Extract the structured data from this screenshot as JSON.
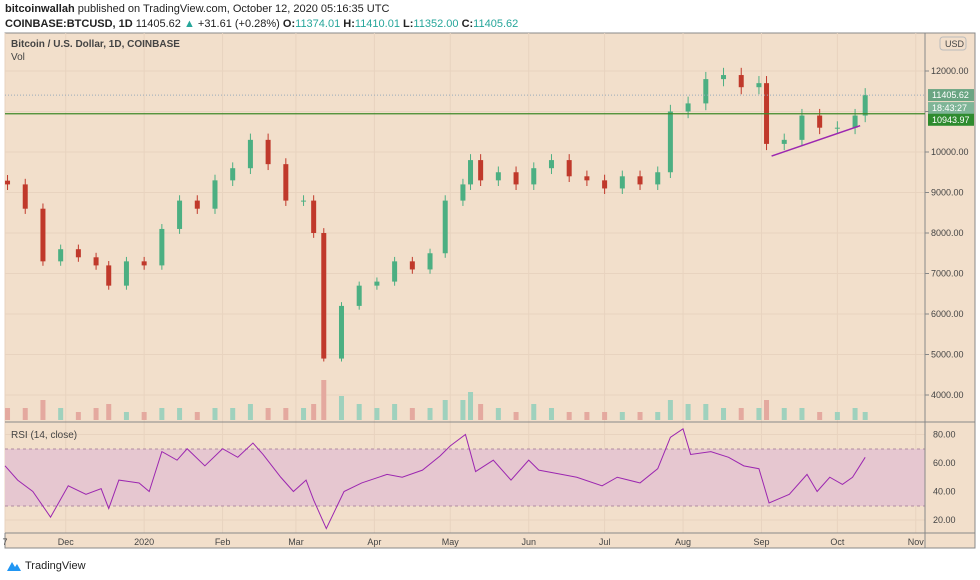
{
  "header": {
    "publisher": "bitcoinwallah",
    "published_text": "published on TradingView.com, October 12, 2020 05:16:35 UTC",
    "symbol": "COINBASE:BTCUSD, 1D",
    "last": "11405.62",
    "change": "+31.61 (+0.28%)",
    "o_label": "O:",
    "o": "11374.01",
    "h_label": "H:",
    "h": "11410.01",
    "l_label": "L:",
    "l": "11352.00",
    "c_label": "C:",
    "c": "11405.62"
  },
  "footer": {
    "brand": "TradingView"
  },
  "colors": {
    "background": "#f2dfcb",
    "up": "#4caf82",
    "down": "#c0392b",
    "rsi_line": "#9c27b0",
    "rsi_band": "#e6c7d0",
    "level_line": "#3f8a2a",
    "trendline": "#9c27b0",
    "price_tag": "#6aa583",
    "level_tag": "#2e8b2e"
  },
  "chart_data": {
    "type": "candlestick",
    "title": "Bitcoin / U.S. Dollar, 1D, COINBASE",
    "volume_label": "Vol",
    "currency_label": "USD",
    "y_ticks": [
      "4000.00",
      "5000.00",
      "6000.00",
      "7000.00",
      "8000.00",
      "9000.00",
      "10000.00",
      "11000.00",
      "12000.00"
    ],
    "x_ticks": [
      [
        "2019-11-07",
        "7"
      ],
      [
        "2019-12-01",
        "Dec"
      ],
      [
        "2020-01-01",
        "2020"
      ],
      [
        "2020-02-01",
        "Feb"
      ],
      [
        "2020-03-01",
        "Mar"
      ],
      [
        "2020-04-01",
        "Apr"
      ],
      [
        "2020-05-01",
        "May"
      ],
      [
        "2020-06-01",
        "Jun"
      ],
      [
        "2020-07-01",
        "Jul"
      ],
      [
        "2020-08-01",
        "Aug"
      ],
      [
        "2020-09-01",
        "Sep"
      ],
      [
        "2020-10-01",
        "Oct"
      ],
      [
        "2020-11-01",
        "Nov"
      ]
    ],
    "price_tag": "11405.62",
    "countdown_tag": "18:43:27",
    "level_tag": "10943.97",
    "level_value": 10943.97,
    "trendline": [
      [
        "2020-09-05",
        9900
      ],
      [
        "2020-10-10",
        10650
      ]
    ],
    "closes": [
      [
        "2019-11-08",
        9200
      ],
      [
        "2019-11-15",
        8600
      ],
      [
        "2019-11-22",
        7300
      ],
      [
        "2019-11-29",
        7600
      ],
      [
        "2019-12-06",
        7400
      ],
      [
        "2019-12-13",
        7200
      ],
      [
        "2019-12-18",
        6700
      ],
      [
        "2019-12-25",
        7300
      ],
      [
        "2020-01-01",
        7200
      ],
      [
        "2020-01-08",
        8100
      ],
      [
        "2020-01-15",
        8800
      ],
      [
        "2020-01-22",
        8600
      ],
      [
        "2020-01-29",
        9300
      ],
      [
        "2020-02-05",
        9600
      ],
      [
        "2020-02-12",
        10300
      ],
      [
        "2020-02-19",
        9700
      ],
      [
        "2020-02-26",
        8800
      ],
      [
        "2020-03-04",
        8800
      ],
      [
        "2020-03-08",
        8000
      ],
      [
        "2020-03-12",
        4900
      ],
      [
        "2020-03-19",
        6200
      ],
      [
        "2020-03-26",
        6700
      ],
      [
        "2020-04-02",
        6800
      ],
      [
        "2020-04-09",
        7300
      ],
      [
        "2020-04-16",
        7100
      ],
      [
        "2020-04-23",
        7500
      ],
      [
        "2020-04-29",
        8800
      ],
      [
        "2020-05-06",
        9200
      ],
      [
        "2020-05-09",
        9800
      ],
      [
        "2020-05-13",
        9300
      ],
      [
        "2020-05-20",
        9500
      ],
      [
        "2020-05-27",
        9200
      ],
      [
        "2020-06-03",
        9600
      ],
      [
        "2020-06-10",
        9800
      ],
      [
        "2020-06-17",
        9400
      ],
      [
        "2020-06-24",
        9300
      ],
      [
        "2020-07-01",
        9100
      ],
      [
        "2020-07-08",
        9400
      ],
      [
        "2020-07-15",
        9200
      ],
      [
        "2020-07-22",
        9500
      ],
      [
        "2020-07-27",
        11000
      ],
      [
        "2020-08-03",
        11200
      ],
      [
        "2020-08-10",
        11800
      ],
      [
        "2020-08-17",
        11900
      ],
      [
        "2020-08-24",
        11600
      ],
      [
        "2020-08-31",
        11700
      ],
      [
        "2020-09-03",
        10200
      ],
      [
        "2020-09-10",
        10300
      ],
      [
        "2020-09-17",
        10900
      ],
      [
        "2020-09-24",
        10600
      ],
      [
        "2020-10-01",
        10600
      ],
      [
        "2020-10-08",
        10900
      ],
      [
        "2020-10-12",
        11405.62
      ]
    ],
    "volume": [
      3,
      3,
      5,
      3,
      2,
      3,
      4,
      2,
      2,
      3,
      3,
      2,
      3,
      3,
      4,
      3,
      3,
      3,
      4,
      10,
      6,
      4,
      3,
      4,
      3,
      3,
      5,
      5,
      7,
      4,
      3,
      2,
      4,
      3,
      2,
      2,
      2,
      2,
      2,
      2,
      5,
      4,
      4,
      3,
      3,
      3,
      5,
      3,
      3,
      2,
      2,
      3,
      2
    ],
    "rsi": {
      "label": "RSI (14, close)",
      "y_ticks": [
        "20.00",
        "40.00",
        "60.00",
        "80.00"
      ],
      "upper": 70,
      "lower": 30,
      "values": [
        [
          "2019-11-07",
          58
        ],
        [
          "2019-11-12",
          48
        ],
        [
          "2019-11-18",
          40
        ],
        [
          "2019-11-25",
          22
        ],
        [
          "2019-12-02",
          44
        ],
        [
          "2019-12-09",
          38
        ],
        [
          "2019-12-15",
          42
        ],
        [
          "2019-12-18",
          28
        ],
        [
          "2019-12-22",
          48
        ],
        [
          "2019-12-30",
          46
        ],
        [
          "2020-01-03",
          40
        ],
        [
          "2020-01-08",
          68
        ],
        [
          "2020-01-14",
          62
        ],
        [
          "2020-01-18",
          70
        ],
        [
          "2020-01-25",
          58
        ],
        [
          "2020-02-01",
          70
        ],
        [
          "2020-02-07",
          64
        ],
        [
          "2020-02-13",
          74
        ],
        [
          "2020-02-17",
          66
        ],
        [
          "2020-02-24",
          50
        ],
        [
          "2020-02-29",
          40
        ],
        [
          "2020-03-05",
          48
        ],
        [
          "2020-03-08",
          34
        ],
        [
          "2020-03-13",
          14
        ],
        [
          "2020-03-20",
          40
        ],
        [
          "2020-03-27",
          46
        ],
        [
          "2020-04-06",
          52
        ],
        [
          "2020-04-12",
          50
        ],
        [
          "2020-04-20",
          55
        ],
        [
          "2020-04-27",
          65
        ],
        [
          "2020-05-01",
          72
        ],
        [
          "2020-05-07",
          80
        ],
        [
          "2020-05-11",
          54
        ],
        [
          "2020-05-18",
          62
        ],
        [
          "2020-05-25",
          48
        ],
        [
          "2020-06-01",
          62
        ],
        [
          "2020-06-05",
          55
        ],
        [
          "2020-06-14",
          52
        ],
        [
          "2020-06-20",
          50
        ],
        [
          "2020-06-30",
          44
        ],
        [
          "2020-07-06",
          50
        ],
        [
          "2020-07-15",
          46
        ],
        [
          "2020-07-22",
          56
        ],
        [
          "2020-07-27",
          78
        ],
        [
          "2020-08-01",
          84
        ],
        [
          "2020-08-04",
          66
        ],
        [
          "2020-08-12",
          68
        ],
        [
          "2020-08-19",
          64
        ],
        [
          "2020-08-25",
          58
        ],
        [
          "2020-08-31",
          56
        ],
        [
          "2020-09-04",
          32
        ],
        [
          "2020-09-12",
          38
        ],
        [
          "2020-09-19",
          52
        ],
        [
          "2020-09-23",
          40
        ],
        [
          "2020-09-28",
          50
        ],
        [
          "2020-10-03",
          45
        ],
        [
          "2020-10-07",
          50
        ],
        [
          "2020-10-12",
          64
        ]
      ]
    }
  }
}
